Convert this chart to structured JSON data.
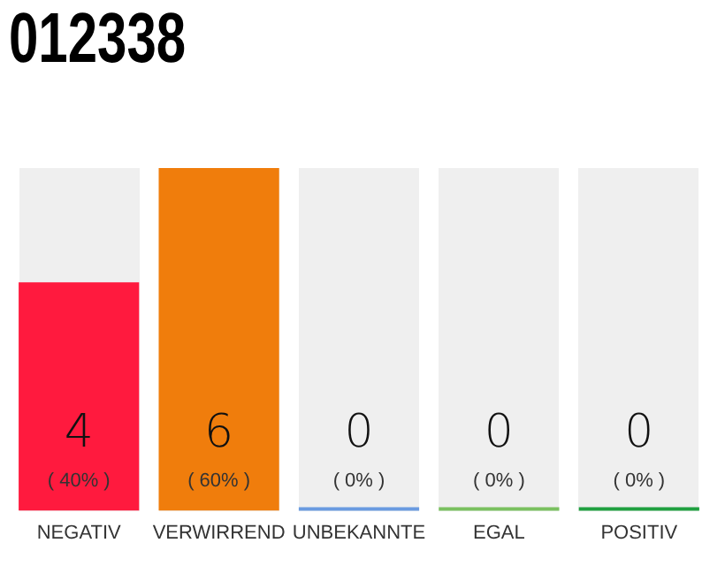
{
  "chart_data": {
    "type": "bar",
    "title": "012338",
    "categories": [
      "NEGATIV",
      "VERWIRREND",
      "UNBEKANNTE",
      "EGAL",
      "POSITIV"
    ],
    "values": [
      4,
      6,
      0,
      0,
      0
    ],
    "colors": [
      "#ff1a3e",
      "#f07d0c",
      "#6a9be0",
      "#7ac060",
      "#20a040"
    ],
    "value_labels": [
      "4\n( 40% )",
      "6\n( 60% )",
      "0\n( 0% )",
      "0\n( 0% )",
      "0\n( 0% )"
    ],
    "grid": false,
    "legend": false
  }
}
